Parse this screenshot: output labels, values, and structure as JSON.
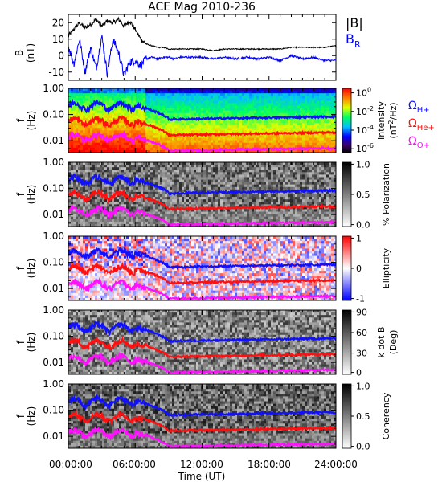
{
  "figure": {
    "title": "ACE Mag 2010-236",
    "xlabel": "Time (UT)",
    "time_ticks": [
      "00:00:00",
      "06:00:00",
      "12:00:00",
      "18:00:00",
      "24:00:00"
    ]
  },
  "colors": {
    "b_total": "#000000",
    "b_r": "#0000ff",
    "omega_h": "#1010ff",
    "omega_he": "#ff1010",
    "omega_o": "#ff10ff"
  },
  "legend": {
    "b_total": "|B|",
    "b_r": "B",
    "b_r_sub": "R",
    "omega_h": "Ω",
    "omega_h_sub": "H+",
    "omega_he": "Ω",
    "omega_he_sub": "He+",
    "omega_o": "Ω",
    "omega_o_sub": "O+"
  },
  "chart_data": [
    {
      "type": "line",
      "id": "B",
      "ylabel": "B",
      "yunit": "(nT)",
      "ylim": [
        -15,
        25
      ],
      "yticks": [
        "20",
        "10",
        "0",
        "-10"
      ],
      "xlim_hours": [
        0,
        24
      ],
      "series": [
        {
          "name": "|B|",
          "x": [
            0,
            0.5,
            1,
            1.5,
            2,
            2.5,
            3,
            3.5,
            4,
            4.5,
            5,
            5.5,
            6,
            6.5,
            7,
            7.5,
            8,
            8.5,
            9,
            9.5,
            10,
            11,
            12,
            13,
            14,
            15,
            16,
            17,
            18,
            19,
            20,
            21,
            22,
            23,
            24
          ],
          "y": [
            12,
            16,
            20,
            17,
            19,
            22,
            18,
            21,
            20,
            22,
            18,
            21,
            16,
            10,
            7,
            6,
            5,
            5,
            4,
            4,
            4,
            4,
            4,
            3,
            4,
            4,
            4,
            4,
            4,
            4,
            5,
            5,
            5,
            5,
            6
          ]
        },
        {
          "name": "B_R",
          "x": [
            0,
            0.5,
            1,
            1.5,
            2,
            2.5,
            3,
            3.5,
            4,
            4.5,
            5,
            5.5,
            6,
            6.5,
            7,
            7.5,
            8,
            8.5,
            9,
            9.5,
            10,
            11,
            12,
            13,
            14,
            15,
            16,
            17,
            18,
            19,
            20,
            21,
            22,
            23,
            24
          ],
          "y": [
            6,
            -5,
            10,
            -10,
            5,
            -8,
            12,
            -11,
            10,
            2,
            -12,
            -4,
            -3,
            -6,
            -2,
            -1,
            -2,
            -1,
            -1,
            -2,
            -1,
            -1,
            -1,
            -2,
            -1,
            -2,
            -1,
            -2,
            -1,
            -3,
            0,
            -2,
            -1,
            -3,
            -3
          ]
        }
      ]
    },
    {
      "type": "heatmap",
      "id": "intensity",
      "ylabel": "f",
      "yunit": "(Hz)",
      "yticks": [
        "1.00",
        "0.10",
        "0.01"
      ],
      "colorbar_title": "Intensity",
      "colorbar_unit": "(nT",
      "colorbar_unit_sup": "2",
      "colorbar_unit_tail": "/Hz)",
      "colorbar_ticks": [
        "10",
        "10",
        "10",
        "10"
      ],
      "colorbar_tick_exponents": [
        "0",
        "-2",
        "-4",
        "-6"
      ]
    },
    {
      "type": "heatmap",
      "id": "polarization",
      "ylabel": "f",
      "yunit": "(Hz)",
      "yticks": [
        "1.00",
        "0.10",
        "0.01"
      ],
      "colorbar_title": "% Polarization",
      "colorbar_ticks": [
        "1.0",
        "0.5",
        "0.0"
      ]
    },
    {
      "type": "heatmap",
      "id": "ellipticity",
      "ylabel": "f",
      "yunit": "(Hz)",
      "yticks": [
        "1.00",
        "0.10",
        "0.01"
      ],
      "colorbar_title": "Ellipticity",
      "colorbar_ticks": [
        "1",
        "0",
        "-1"
      ]
    },
    {
      "type": "heatmap",
      "id": "kdotb",
      "ylabel": "f",
      "yunit": "(Hz)",
      "yticks": [
        "1.00",
        "0.10",
        "0.01"
      ],
      "colorbar_title": "k dot B",
      "colorbar_unit": "(Deg)",
      "colorbar_ticks": [
        "90",
        "60",
        "30",
        "0"
      ]
    },
    {
      "type": "heatmap",
      "id": "coherency",
      "ylabel": "f",
      "yunit": "(Hz)",
      "yticks": [
        "1.00",
        "0.10",
        "0.01"
      ],
      "colorbar_title": "Coherency",
      "colorbar_ticks": [
        "1.0",
        "0.5",
        "0.0"
      ]
    }
  ]
}
